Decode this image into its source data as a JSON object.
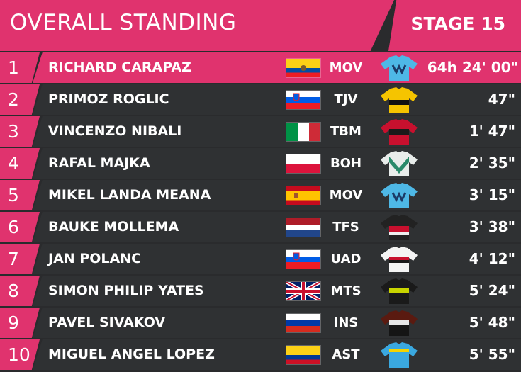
{
  "header": {
    "title": "OVERALL STANDING",
    "stage": "STAGE 15"
  },
  "colors": {
    "accent": "#e0336e",
    "row_bg": "#2f3133",
    "page_bg": "#2a2b2d"
  },
  "standings": [
    {
      "pos": "1",
      "name": "RICHARD CARAPAZ",
      "country": "ecuador",
      "team": "MOV",
      "jersey": "movistar-jersey-icon",
      "time": "64h 24' 00\""
    },
    {
      "pos": "2",
      "name": "PRIMOZ ROGLIC",
      "country": "slovenia",
      "team": "TJV",
      "jersey": "jumbo-jersey-icon",
      "time": "47\""
    },
    {
      "pos": "3",
      "name": "VINCENZO NIBALI",
      "country": "italy",
      "team": "TBM",
      "jersey": "bahrain-jersey-icon",
      "time": "1' 47\""
    },
    {
      "pos": "4",
      "name": "RAFAL MAJKA",
      "country": "poland",
      "team": "BOH",
      "jersey": "bora-jersey-icon",
      "time": "2' 35\""
    },
    {
      "pos": "5",
      "name": "MIKEL LANDA MEANA",
      "country": "spain",
      "team": "MOV",
      "jersey": "movistar-jersey-icon",
      "time": "3' 15\""
    },
    {
      "pos": "6",
      "name": "BAUKE MOLLEMA",
      "country": "netherlands",
      "team": "TFS",
      "jersey": "trek-jersey-icon",
      "time": "3' 38\""
    },
    {
      "pos": "7",
      "name": "JAN POLANC",
      "country": "slovenia",
      "team": "UAD",
      "jersey": "uae-jersey-icon",
      "time": "4' 12\""
    },
    {
      "pos": "8",
      "name": "SIMON PHILIP YATES",
      "country": "united-kingdom",
      "team": "MTS",
      "jersey": "mitchelton-jersey-icon",
      "time": "5' 24\""
    },
    {
      "pos": "9",
      "name": "PAVEL SIVAKOV",
      "country": "russia",
      "team": "INS",
      "jersey": "ineos-jersey-icon",
      "time": "5' 48\""
    },
    {
      "pos": "10",
      "name": "MIGUEL ANGEL LOPEZ",
      "country": "colombia",
      "team": "AST",
      "jersey": "astana-jersey-icon",
      "time": "5' 55\""
    }
  ]
}
